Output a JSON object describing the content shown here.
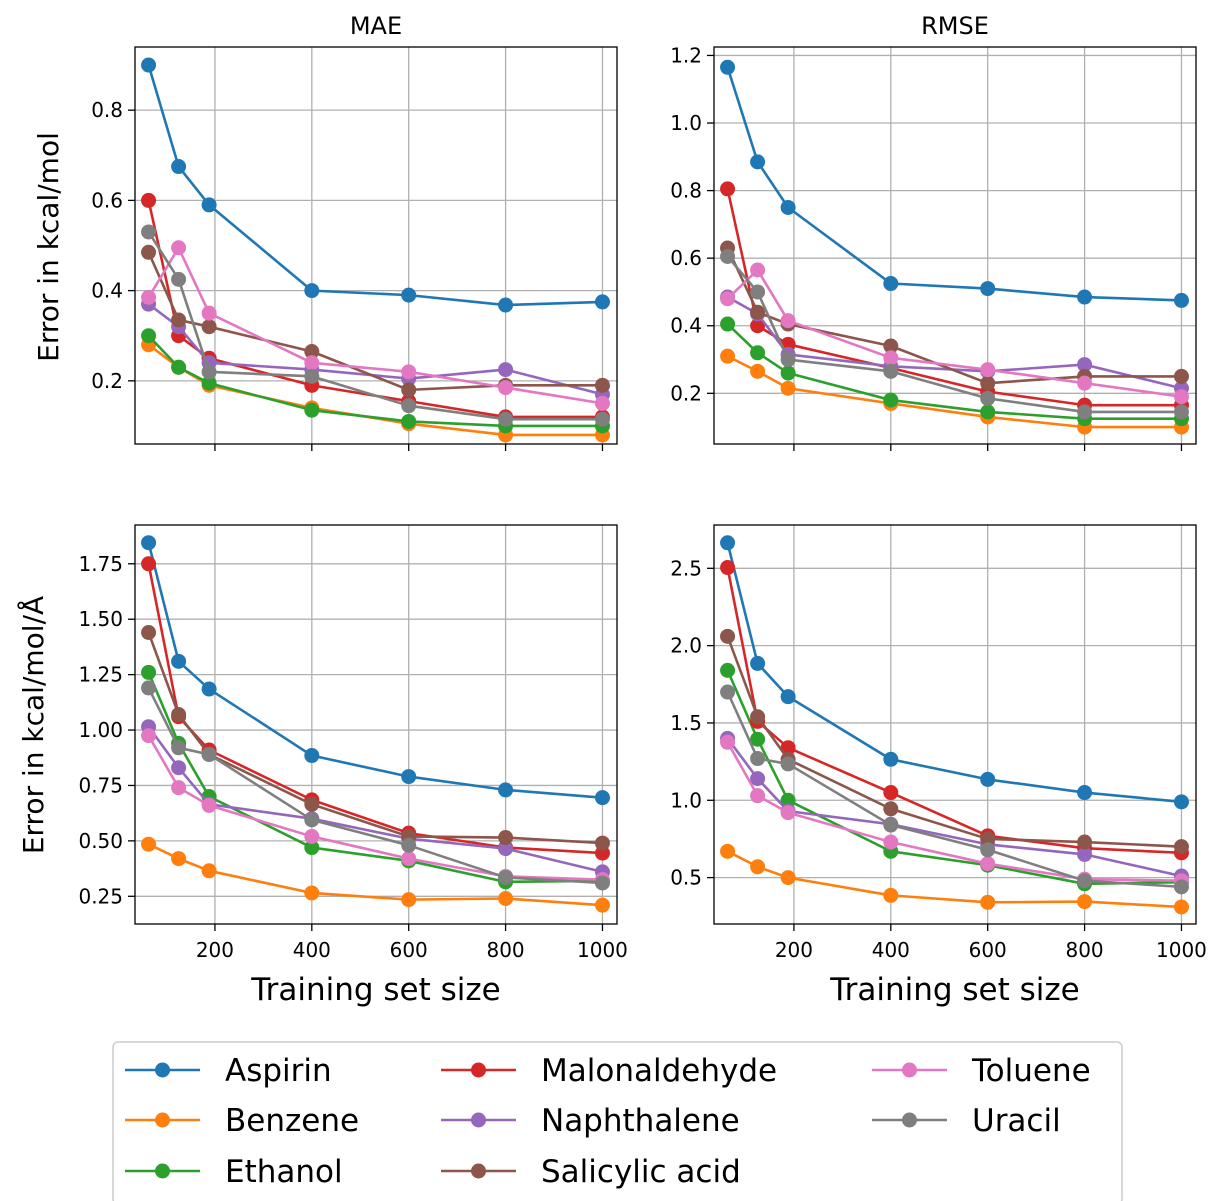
{
  "colors": {
    "Aspirin": "#1f77b4",
    "Benzene": "#ff7f0e",
    "Ethanol": "#2ca02c",
    "Malonaldehyde": "#d62728",
    "Naphthalene": "#9467bd",
    "Salicylic acid": "#8c564b",
    "Toluene": "#e377c2",
    "Uracil": "#7f7f7f"
  },
  "legend": {
    "placement": "bottom-center",
    "entries": [
      "Aspirin",
      "Benzene",
      "Ethanol",
      "Malonaldehyde",
      "Naphthalene",
      "Salicylic acid",
      "Toluene",
      "Uracil"
    ]
  },
  "chart_data": [
    {
      "type": "line",
      "title": "MAE",
      "xlabel": "",
      "ylabel": "Error in kcal/mol",
      "xlim": [
        35,
        1030
      ],
      "ylim": [
        0.06,
        0.94
      ],
      "xticks": [
        200,
        400,
        600,
        800,
        1000
      ],
      "xtick_labels_shown": false,
      "yticks": [
        0.2,
        0.4,
        0.6,
        0.8
      ],
      "ytick_labels": [
        "0.2",
        "0.4",
        "0.6",
        "0.8"
      ],
      "grid": true,
      "x": [
        63,
        125,
        188,
        400,
        600,
        800,
        1000
      ],
      "series": [
        {
          "name": "Aspirin",
          "values": [
            0.9,
            0.675,
            0.59,
            0.4,
            0.39,
            0.368,
            0.375
          ]
        },
        {
          "name": "Benzene",
          "values": [
            0.28,
            0.23,
            0.19,
            0.14,
            0.105,
            0.08,
            0.08
          ]
        },
        {
          "name": "Ethanol",
          "values": [
            0.3,
            0.23,
            0.195,
            0.135,
            0.11,
            0.1,
            0.1
          ]
        },
        {
          "name": "Malonaldehyde",
          "values": [
            0.6,
            0.3,
            0.25,
            0.19,
            0.155,
            0.12,
            0.12
          ]
        },
        {
          "name": "Naphthalene",
          "values": [
            0.37,
            0.32,
            0.24,
            0.225,
            0.205,
            0.225,
            0.17
          ]
        },
        {
          "name": "Salicylic acid",
          "values": [
            0.485,
            0.335,
            0.32,
            0.265,
            0.18,
            0.19,
            0.19
          ]
        },
        {
          "name": "Toluene",
          "values": [
            0.385,
            0.495,
            0.35,
            0.24,
            0.22,
            0.185,
            0.15
          ]
        },
        {
          "name": "Uracil",
          "values": [
            0.53,
            0.425,
            0.22,
            0.21,
            0.145,
            0.115,
            0.115
          ]
        }
      ]
    },
    {
      "type": "line",
      "title": "RMSE",
      "xlabel": "",
      "ylabel": "",
      "xlim": [
        35,
        1030
      ],
      "ylim": [
        0.05,
        1.225
      ],
      "xticks": [
        200,
        400,
        600,
        800,
        1000
      ],
      "xtick_labels_shown": false,
      "yticks": [
        0.2,
        0.4,
        0.6,
        0.8,
        1.0,
        1.2
      ],
      "ytick_labels": [
        "0.2",
        "0.4",
        "0.6",
        "0.8",
        "1.0",
        "1.2"
      ],
      "grid": true,
      "x": [
        63,
        125,
        188,
        400,
        600,
        800,
        1000
      ],
      "series": [
        {
          "name": "Aspirin",
          "values": [
            1.165,
            0.885,
            0.75,
            0.525,
            0.51,
            0.485,
            0.475
          ]
        },
        {
          "name": "Benzene",
          "values": [
            0.31,
            0.265,
            0.215,
            0.17,
            0.13,
            0.1,
            0.1
          ]
        },
        {
          "name": "Ethanol",
          "values": [
            0.405,
            0.32,
            0.26,
            0.18,
            0.145,
            0.125,
            0.125
          ]
        },
        {
          "name": "Malonaldehyde",
          "values": [
            0.805,
            0.4,
            0.345,
            0.275,
            0.205,
            0.165,
            0.165
          ]
        },
        {
          "name": "Naphthalene",
          "values": [
            0.485,
            0.435,
            0.315,
            0.28,
            0.265,
            0.285,
            0.215
          ]
        },
        {
          "name": "Salicylic acid",
          "values": [
            0.63,
            0.44,
            0.405,
            0.34,
            0.23,
            0.25,
            0.25
          ]
        },
        {
          "name": "Toluene",
          "values": [
            0.48,
            0.565,
            0.415,
            0.305,
            0.27,
            0.23,
            0.19
          ]
        },
        {
          "name": "Uracil",
          "values": [
            0.605,
            0.5,
            0.3,
            0.265,
            0.185,
            0.145,
            0.145
          ]
        }
      ]
    },
    {
      "type": "line",
      "title": "",
      "xlabel": "Training set size",
      "ylabel": "Error in kcal/mol/Å",
      "xlim": [
        35,
        1030
      ],
      "ylim": [
        0.125,
        1.925
      ],
      "xticks": [
        200,
        400,
        600,
        800,
        1000
      ],
      "xtick_labels": [
        "200",
        "400",
        "600",
        "800",
        "1000"
      ],
      "yticks": [
        0.25,
        0.5,
        0.75,
        1.0,
        1.25,
        1.5,
        1.75
      ],
      "ytick_labels": [
        "0.25",
        "0.50",
        "0.75",
        "1.00",
        "1.25",
        "1.50",
        "1.75"
      ],
      "grid": true,
      "x": [
        63,
        125,
        188,
        400,
        600,
        800,
        1000
      ],
      "series": [
        {
          "name": "Aspirin",
          "values": [
            1.845,
            1.31,
            1.185,
            0.885,
            0.79,
            0.73,
            0.695
          ]
        },
        {
          "name": "Benzene",
          "values": [
            0.485,
            0.42,
            0.365,
            0.265,
            0.235,
            0.24,
            0.21
          ]
        },
        {
          "name": "Ethanol",
          "values": [
            1.26,
            0.94,
            0.7,
            0.47,
            0.41,
            0.315,
            0.32
          ]
        },
        {
          "name": "Malonaldehyde",
          "values": [
            1.75,
            1.06,
            0.91,
            0.685,
            0.535,
            0.47,
            0.445
          ]
        },
        {
          "name": "Naphthalene",
          "values": [
            1.015,
            0.83,
            0.665,
            0.6,
            0.51,
            0.465,
            0.36
          ]
        },
        {
          "name": "Salicylic acid",
          "values": [
            1.44,
            1.07,
            0.89,
            0.665,
            0.52,
            0.515,
            0.49
          ]
        },
        {
          "name": "Toluene",
          "values": [
            0.975,
            0.74,
            0.66,
            0.52,
            0.42,
            0.34,
            0.325
          ]
        },
        {
          "name": "Uracil",
          "values": [
            1.19,
            0.92,
            0.89,
            0.595,
            0.48,
            0.335,
            0.31
          ]
        }
      ]
    },
    {
      "type": "line",
      "title": "",
      "xlabel": "Training set size",
      "ylabel": "",
      "xlim": [
        35,
        1030
      ],
      "ylim": [
        0.2,
        2.78
      ],
      "xticks": [
        200,
        400,
        600,
        800,
        1000
      ],
      "xtick_labels": [
        "200",
        "400",
        "600",
        "800",
        "1000"
      ],
      "yticks": [
        0.5,
        1.0,
        1.5,
        2.0,
        2.5
      ],
      "ytick_labels": [
        "0.5",
        "1.0",
        "1.5",
        "2.0",
        "2.5"
      ],
      "grid": true,
      "x": [
        63,
        125,
        188,
        400,
        600,
        800,
        1000
      ],
      "series": [
        {
          "name": "Aspirin",
          "values": [
            2.665,
            1.885,
            1.67,
            1.265,
            1.135,
            1.05,
            0.99
          ]
        },
        {
          "name": "Benzene",
          "values": [
            0.67,
            0.57,
            0.5,
            0.385,
            0.34,
            0.345,
            0.31
          ]
        },
        {
          "name": "Ethanol",
          "values": [
            1.84,
            1.395,
            1.0,
            0.67,
            0.58,
            0.46,
            0.47
          ]
        },
        {
          "name": "Malonaldehyde",
          "values": [
            2.505,
            1.51,
            1.34,
            1.05,
            0.77,
            0.69,
            0.66
          ]
        },
        {
          "name": "Naphthalene",
          "values": [
            1.4,
            1.14,
            0.93,
            0.845,
            0.715,
            0.65,
            0.51
          ]
        },
        {
          "name": "Salicylic acid",
          "values": [
            2.06,
            1.54,
            1.265,
            0.945,
            0.75,
            0.73,
            0.7
          ]
        },
        {
          "name": "Toluene",
          "values": [
            1.375,
            1.03,
            0.92,
            0.73,
            0.59,
            0.49,
            0.48
          ]
        },
        {
          "name": "Uracil",
          "values": [
            1.7,
            1.27,
            1.235,
            0.84,
            0.68,
            0.48,
            0.44
          ]
        }
      ]
    }
  ]
}
